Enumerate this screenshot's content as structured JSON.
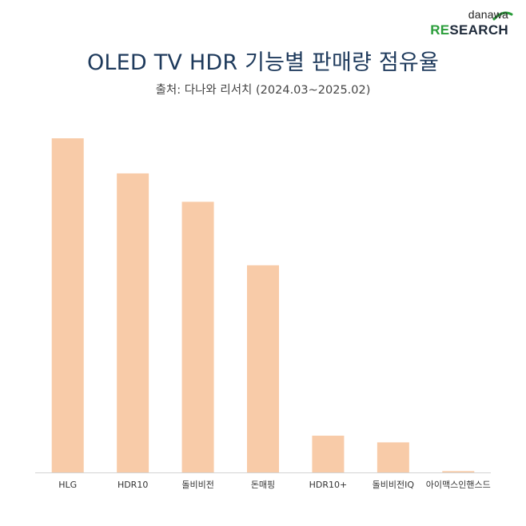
{
  "header": {
    "logo_top": "danawa",
    "logo_re": "RE",
    "logo_rest": "SEARCH",
    "title": "OLED TV HDR 기능별 판매량 점유율",
    "subtitle": "출처: 다나와 리서치 (2024.03~2025.02)"
  },
  "colors": {
    "bar": "#f8cba8",
    "axis": "#d4d4d4",
    "title": "#1e3a5c",
    "logo_green": "#2a9d3a"
  },
  "chart_data": {
    "type": "bar",
    "categories": [
      "HLG",
      "HDR10",
      "돌비비전",
      "돈매핑",
      "HDR10+",
      "돌비비전IQ",
      "아이맥스인핸스드"
    ],
    "values": [
      100,
      89.5,
      81,
      62,
      11,
      9,
      0.4
    ],
    "ylim": [
      0,
      100
    ],
    "grid": false,
    "legend": "none"
  }
}
